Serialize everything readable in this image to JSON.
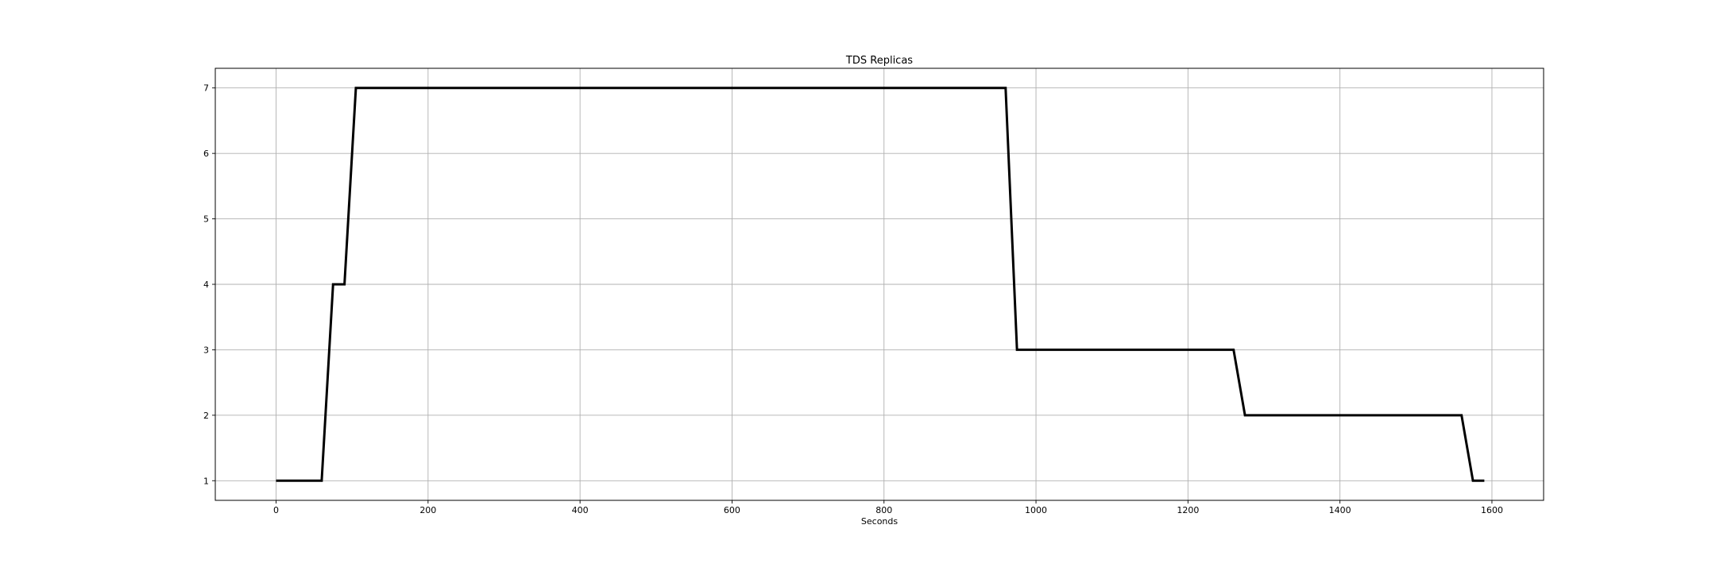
{
  "chart_data": {
    "type": "line",
    "title": "TDS Replicas",
    "xlabel": "Seconds",
    "ylabel": "",
    "xlim": [
      -80,
      1668
    ],
    "ylim": [
      0.7,
      7.3
    ],
    "grid": true,
    "x_ticks": [
      0,
      200,
      400,
      600,
      800,
      1000,
      1200,
      1400,
      1600
    ],
    "y_ticks": [
      1,
      2,
      3,
      4,
      5,
      6,
      7
    ],
    "line_color": "#000000",
    "series": [
      {
        "x": [
          0,
          60,
          75,
          90,
          105,
          960,
          975,
          1260,
          1275,
          1560,
          1575,
          1590
        ],
        "values": [
          1,
          1,
          4,
          4,
          7,
          7,
          3,
          3,
          2,
          2,
          1,
          1
        ]
      }
    ]
  }
}
